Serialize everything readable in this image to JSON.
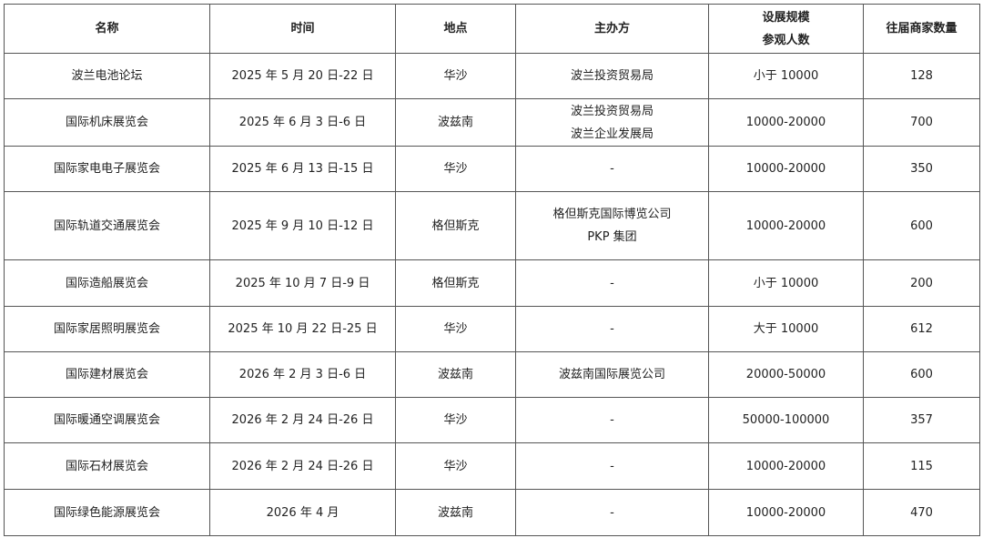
{
  "table": {
    "headers": [
      [
        "名称"
      ],
      [
        "时间"
      ],
      [
        "地点"
      ],
      [
        "主办方"
      ],
      [
        "设展规模",
        "参观人数"
      ],
      [
        "往届商家数量"
      ]
    ],
    "rows": [
      {
        "name": "波兰电池论坛",
        "time": "2025 年 5 月 20 日-22 日",
        "place": "华沙",
        "organizer": [
          "波兰投资贸易局"
        ],
        "scale": "小于 10000",
        "exhibitors": "128"
      },
      {
        "name": "国际机床展览会",
        "time": "2025 年 6 月 3 日-6 日",
        "place": "波兹南",
        "organizer": [
          "波兰投资贸易局",
          "波兰企业发展局"
        ],
        "scale": "10000-20000",
        "exhibitors": "700"
      },
      {
        "name": "国际家电电子展览会",
        "time": "2025 年 6 月 13 日-15 日",
        "place": "华沙",
        "organizer": [
          "-"
        ],
        "scale": "10000-20000",
        "exhibitors": "350"
      },
      {
        "name": "国际轨道交通展览会",
        "time": "2025 年 9 月 10 日-12 日",
        "place": "格但斯克",
        "organizer": [
          "格但斯克国际博览公司",
          "PKP 集团"
        ],
        "scale": "10000-20000",
        "exhibitors": "600"
      },
      {
        "name": "国际造船展览会",
        "time": "2025 年 10 月 7 日-9 日",
        "place": "格但斯克",
        "organizer": [
          "-"
        ],
        "scale": "小于 10000",
        "exhibitors": "200"
      },
      {
        "name": "国际家居照明展览会",
        "time": "2025 年 10 月 22 日-25 日",
        "place": "华沙",
        "organizer": [
          "-"
        ],
        "scale": "大于 10000",
        "exhibitors": "612"
      },
      {
        "name": "国际建材展览会",
        "time": "2026 年 2 月 3 日-6 日",
        "place": "波兹南",
        "organizer": [
          "波兹南国际展览公司"
        ],
        "scale": "20000-50000",
        "exhibitors": "600"
      },
      {
        "name": "国际暖通空调展览会",
        "time": "2026 年 2 月 24 日-26 日",
        "place": "华沙",
        "organizer": [
          "-"
        ],
        "scale": "50000-100000",
        "exhibitors": "357"
      },
      {
        "name": "国际石材展览会",
        "time": "2026 年 2 月 24 日-26 日",
        "place": "华沙",
        "organizer": [
          "-"
        ],
        "scale": "10000-20000",
        "exhibitors": "115"
      },
      {
        "name": "国际绿色能源展览会",
        "time": "2026 年 4 月",
        "place": "波兹南",
        "organizer": [
          "-"
        ],
        "scale": "10000-20000",
        "exhibitors": "470"
      }
    ]
  }
}
